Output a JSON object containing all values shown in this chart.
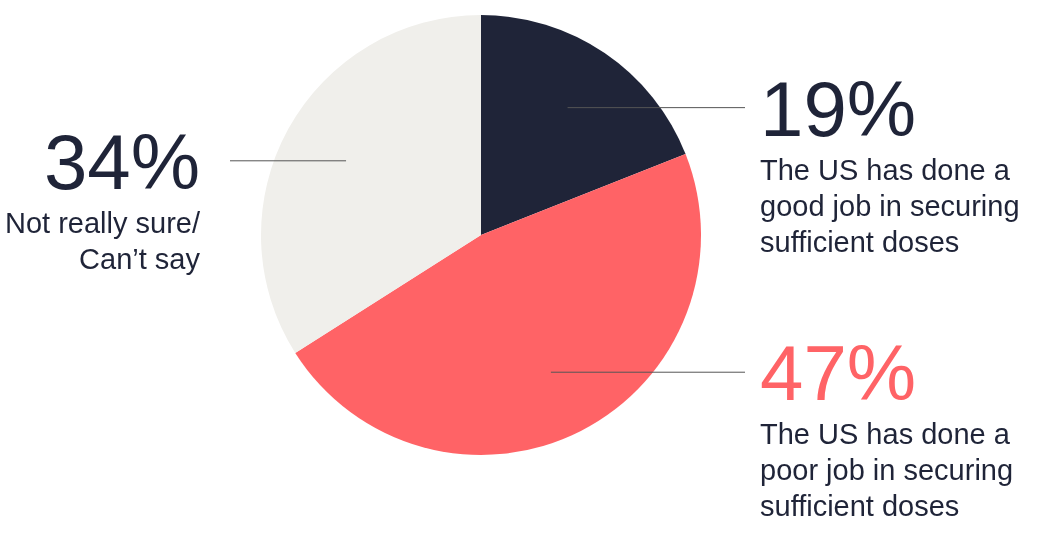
{
  "chart_data": {
    "type": "pie",
    "categories": [
      "The US has done a good job in securing sufficient doses",
      "The US has done a poor job in securing sufficient doses",
      "Not really sure/ Can’t say"
    ],
    "values": [
      19,
      47,
      34
    ],
    "colors": [
      "#1f2438",
      "#ff6366",
      "#f0efeb"
    ],
    "value_labels": [
      "19%",
      "47%",
      "34%"
    ]
  }
}
